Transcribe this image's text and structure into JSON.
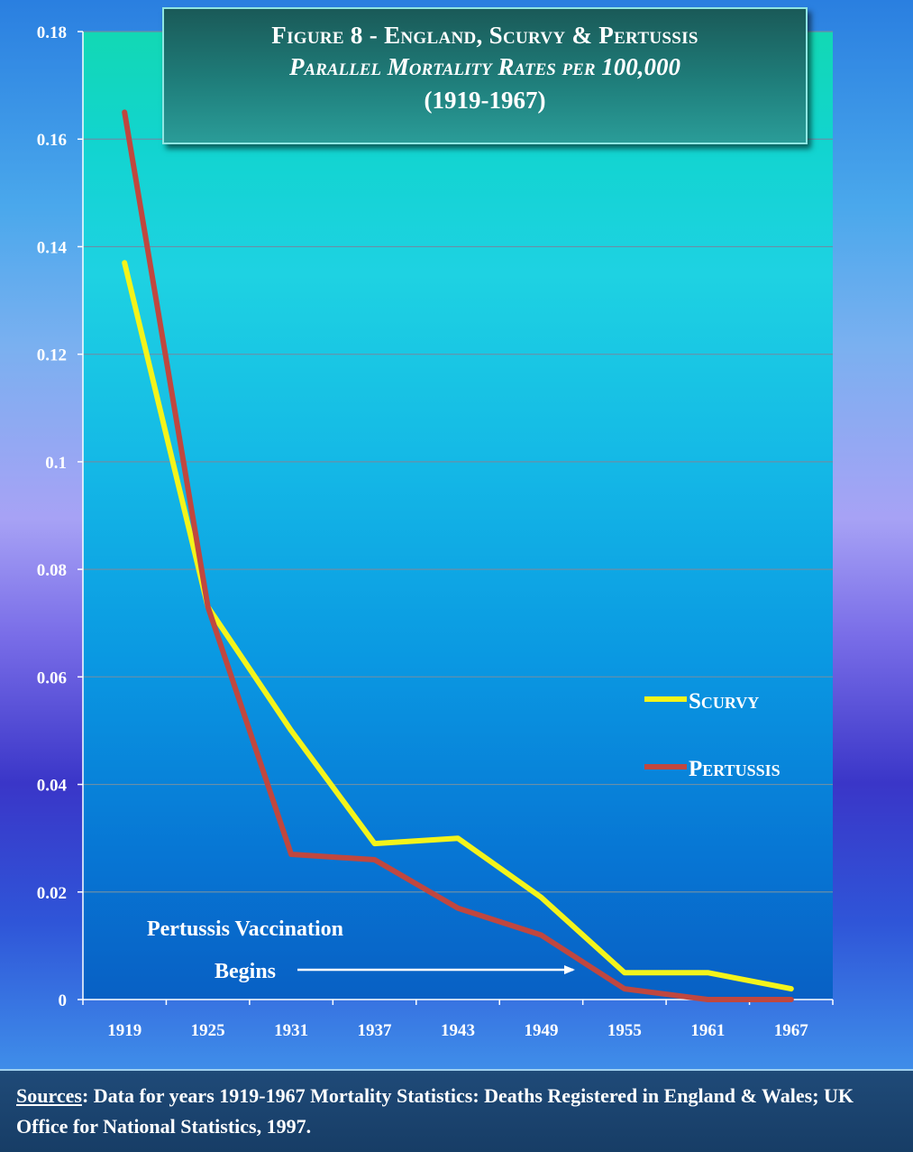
{
  "title": {
    "line1": "Figure 8 - England, Scurvy & Pertussis",
    "line2": "Parallel Mortality Rates per 100,000",
    "line3": "(1919-1967)"
  },
  "annotation": {
    "line1": "Pertussis Vaccination",
    "line2": "Begins"
  },
  "sources": {
    "label": "Sources",
    "text": ": Data for years 1919-1967 Mortality Statistics: Deaths Registered in England & Wales;  UK Office for National Statistics, 1997."
  },
  "colors": {
    "scurvy": "#f4f41a",
    "pertussis": "#c0473f",
    "grid": "#6a8fa8"
  },
  "chart_data": {
    "type": "line",
    "categories": [
      "1919",
      "1925",
      "1931",
      "1937",
      "1943",
      "1949",
      "1955",
      "1961",
      "1967"
    ],
    "series": [
      {
        "name": "Scurvy",
        "values": [
          0.137,
          0.073,
          0.05,
          0.029,
          0.03,
          0.019,
          0.005,
          0.005,
          0.002
        ]
      },
      {
        "name": "Pertussis",
        "values": [
          0.165,
          0.073,
          0.027,
          0.026,
          0.017,
          0.012,
          0.002,
          0.0,
          0.0
        ]
      }
    ],
    "y_ticks": [
      "0",
      "0.02",
      "0.04",
      "0.06",
      "0.08",
      "0.1",
      "0.12",
      "0.14",
      "0.16",
      "0.18"
    ],
    "ylim": [
      0,
      0.18
    ],
    "grid": true,
    "legend_position": "right"
  }
}
